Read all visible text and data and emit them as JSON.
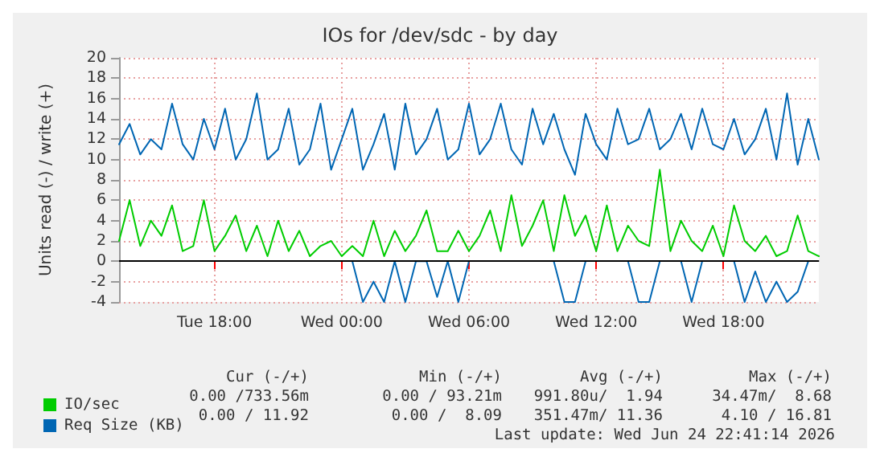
{
  "chart_data": {
    "type": "line",
    "title": "IOs for /dev/sdc - by day",
    "ylabel": "Units read (-) / write (+)",
    "categories": [
      null,
      null,
      null,
      null,
      null,
      null,
      null,
      null,
      null,
      "Tue 18:00",
      null,
      null,
      null,
      null,
      null,
      null,
      null,
      null,
      null,
      null,
      null,
      "Wed 00:00",
      null,
      null,
      null,
      null,
      null,
      null,
      null,
      null,
      null,
      null,
      null,
      "Wed 06:00",
      null,
      null,
      null,
      null,
      null,
      null,
      null,
      null,
      null,
      null,
      null,
      "Wed 12:00",
      null,
      null,
      null,
      null,
      null,
      null,
      null,
      null,
      null,
      null,
      null,
      "Wed 18:00",
      null,
      null,
      null,
      null,
      null,
      null,
      null,
      null,
      null
    ],
    "series": [
      {
        "name": "IO/sec",
        "color": "#00cc00",
        "values": [
          2,
          6,
          1.5,
          4,
          2.5,
          5.5,
          1,
          1.5,
          6,
          1,
          2.5,
          4.5,
          1,
          3.5,
          0.5,
          4,
          1,
          3,
          0.5,
          1.5,
          2,
          0.5,
          1.5,
          0.5,
          4,
          0.5,
          3,
          1,
          2.5,
          5,
          1,
          1,
          3,
          1,
          2.5,
          5,
          1,
          6.5,
          1.5,
          3.5,
          6,
          1,
          6.5,
          2.5,
          4.5,
          1,
          5.5,
          1,
          3.5,
          2,
          1.5,
          9,
          1,
          4,
          2,
          1,
          3.5,
          0.5,
          5.5,
          2,
          1,
          2.5,
          0.5,
          1,
          4.5,
          1,
          0.5
        ]
      },
      {
        "name": "Req Size (KB)",
        "color": "#0066b3",
        "values": [
          11.5,
          13.5,
          10.5,
          12,
          11,
          15.5,
          11.5,
          10,
          14,
          11,
          15,
          10,
          12,
          16.5,
          10,
          11,
          15,
          9.5,
          11,
          15.5,
          9,
          12,
          15,
          9,
          11.5,
          14.5,
          9,
          15.5,
          10.5,
          12,
          15,
          10,
          11,
          15.5,
          10.5,
          12,
          15.5,
          11,
          9.5,
          15,
          11.5,
          14.5,
          11,
          8.5,
          14.5,
          11.5,
          10,
          15,
          11.5,
          12,
          15,
          11,
          12,
          14.5,
          11,
          15,
          11.5,
          11,
          14,
          10.5,
          12,
          15,
          10,
          16.5,
          9.5,
          14,
          10
        ]
      },
      {
        "color": "#0066b3",
        "values": [
          null,
          null,
          null,
          null,
          null,
          null,
          null,
          null,
          null,
          null,
          null,
          null,
          null,
          null,
          null,
          null,
          null,
          null,
          null,
          null,
          null,
          null,
          0,
          -4,
          -2,
          -4,
          0,
          -4,
          0,
          0,
          -3.5,
          0,
          -4,
          0,
          null,
          null,
          null,
          null,
          null,
          null,
          null,
          0,
          -4,
          -4,
          0,
          null,
          null,
          null,
          0,
          -4,
          -4,
          0,
          null,
          0,
          -4,
          0,
          null,
          null,
          0,
          -4,
          -1,
          -4,
          -2,
          -4,
          -3,
          0,
          null
        ]
      }
    ],
    "ylim": [
      -4,
      20
    ],
    "yticks": [
      -4,
      -2,
      0,
      2,
      4,
      6,
      8,
      10,
      12,
      14,
      16,
      18,
      20
    ],
    "ref_lines": [
      {
        "axis": "y",
        "value": 0,
        "color": "#000000"
      }
    ],
    "grid": true,
    "legend": "bottom",
    "marker": "none",
    "line_style": "solid",
    "annotations": [
      "Cur (-/+)",
      "Min (-/+)",
      "Avg (-/+)",
      "Max (-/+)",
      "0.00 /733.56m",
      "0.00 / 93.21m",
      "991.80u/  1.94",
      "34.47m/  8.68",
      "0.00 / 11.92",
      "0.00 /  8.09",
      "351.47m/ 11.36",
      "4.10 / 16.81",
      "Last update: Wed Jun 24 22:41:14 2026"
    ]
  }
}
